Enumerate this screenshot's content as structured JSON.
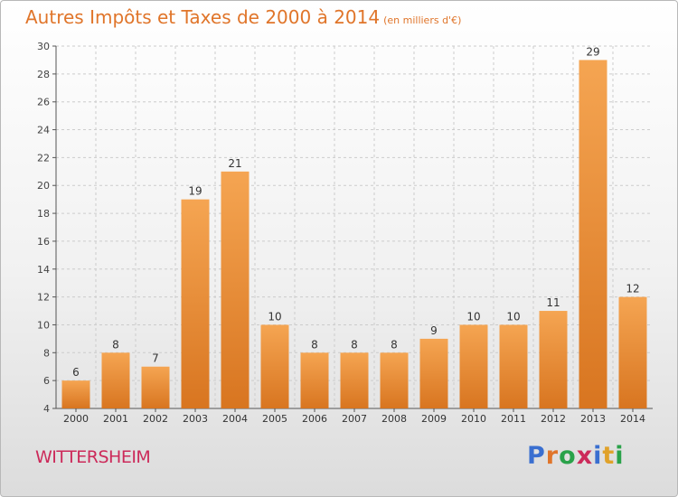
{
  "title": {
    "main": "Autres Impôts et Taxes de 2000 à 2014",
    "unit": "(en milliers d'€)"
  },
  "commune": "WITTERSHEIM",
  "logo": {
    "text": "Proxiti",
    "letter_colors": [
      "#3a6fd0",
      "#e0752a",
      "#2aa24a",
      "#cc2a5a",
      "#3a6fd0",
      "#e0a22a",
      "#2aa24a"
    ]
  },
  "colors": {
    "bar_light": "#f5a552",
    "bar_dark": "#d87520",
    "title": "#e0752a",
    "commune": "#cc2a5a"
  },
  "chart_data": {
    "type": "bar",
    "categories": [
      "2000",
      "2001",
      "2002",
      "2003",
      "2004",
      "2005",
      "2006",
      "2007",
      "2008",
      "2009",
      "2010",
      "2011",
      "2012",
      "2013",
      "2014"
    ],
    "values": [
      6,
      8,
      7,
      19,
      21,
      10,
      8,
      8,
      8,
      9,
      10,
      10,
      11,
      29,
      12
    ],
    "ylim": [
      4,
      30
    ],
    "yticks": [
      4,
      6,
      8,
      10,
      12,
      14,
      16,
      18,
      20,
      22,
      24,
      26,
      28,
      30
    ],
    "grid": true,
    "legend": "none"
  }
}
